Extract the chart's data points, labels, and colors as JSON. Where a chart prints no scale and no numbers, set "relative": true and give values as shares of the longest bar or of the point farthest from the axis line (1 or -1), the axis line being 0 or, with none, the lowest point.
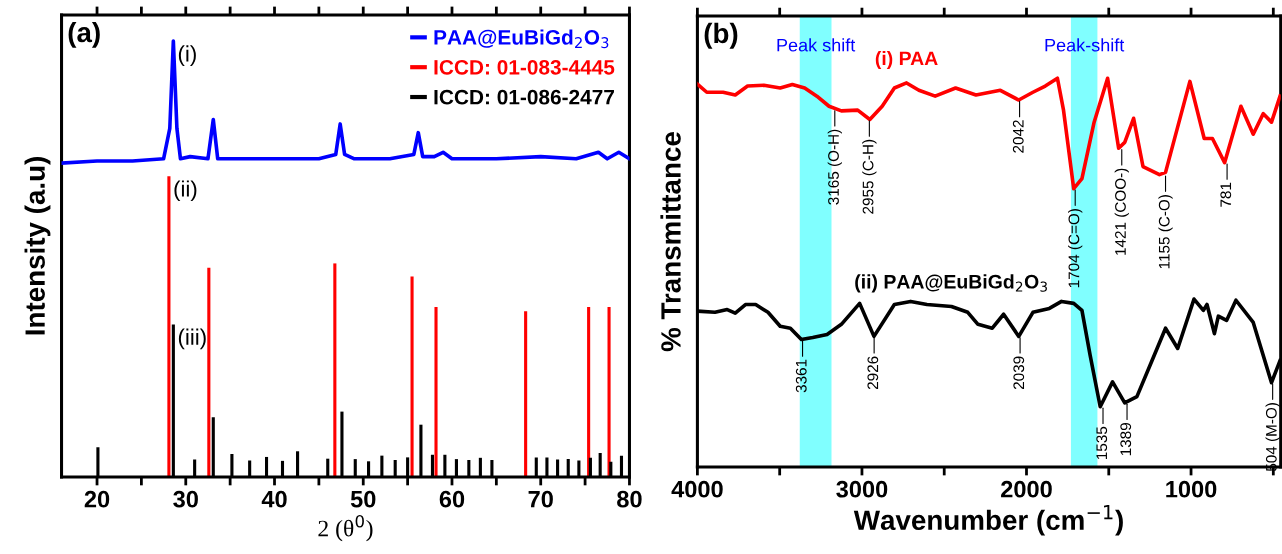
{
  "chart_data": [
    {
      "type": "line",
      "relative": true,
      "xlabel": "2 (θ$^{0}$)",
      "ylabel": "Intensity (a.u)",
      "xlim": [
        16,
        80
      ],
      "xticks": [
        20,
        {
          "value": 25,
          "label": null
        },
        30,
        {
          "value": 35,
          "label": null
        },
        40,
        {
          "value": 45,
          "label": null
        },
        50,
        {
          "value": 55,
          "label": null
        },
        60,
        {
          "value": 65,
          "label": null
        },
        70,
        {
          "value": 75,
          "label": null
        },
        80
      ],
      "legend": "top right",
      "grid": false,
      "annotations": [
        "(a)",
        {
          "text": "(i)",
          "x": 28.6,
          "y": 1.0
        },
        {
          "text": "(ii)",
          "x": 28.1,
          "y": 0.69
        },
        {
          "text": "(iii)",
          "x": 28.6,
          "y": 0.35
        }
      ],
      "series": [
        {
          "name": "PAA@EuBiGd$_{2}$O$_{3}$",
          "color": "#0000ff",
          "x": [
            16,
            20,
            24,
            27.5,
            28.2,
            28.6,
            29.0,
            29.4,
            30.5,
            32.5,
            33.1,
            33.6,
            35,
            40,
            45,
            46.9,
            47.4,
            47.9,
            49,
            53,
            55.7,
            56.2,
            56.7,
            58,
            59,
            60,
            65,
            70,
            74,
            76.5,
            77.5,
            78.8,
            80
          ],
          "values": [
            0.72,
            0.725,
            0.725,
            0.73,
            0.8,
            1.0,
            0.8,
            0.73,
            0.735,
            0.73,
            0.82,
            0.73,
            0.73,
            0.73,
            0.73,
            0.74,
            0.81,
            0.74,
            0.73,
            0.73,
            0.74,
            0.79,
            0.735,
            0.735,
            0.745,
            0.73,
            0.73,
            0.735,
            0.73,
            0.745,
            0.73,
            0.745,
            0.73
          ]
        },
        {
          "name": "ICCD: 01-083-4445",
          "type": "bar",
          "color": "#ff0000",
          "x": [
            28.1,
            32.6,
            46.8,
            55.5,
            58.2,
            68.3,
            75.4,
            77.7
          ],
          "values": [
            0.69,
            0.48,
            0.49,
            0.46,
            0.39,
            0.38,
            0.39,
            0.39
          ]
        },
        {
          "name": "ICCD: 01-086-2477",
          "type": "bar",
          "color": "#000000",
          "x": [
            20.1,
            28.6,
            31.0,
            33.1,
            35.2,
            37.2,
            39.1,
            40.9,
            42.6,
            46.0,
            47.6,
            49.1,
            50.6,
            52.1,
            53.6,
            55.0,
            56.5,
            57.8,
            59.2,
            60.5,
            61.9,
            63.2,
            64.5,
            69.5,
            70.7,
            71.9,
            73.1,
            74.3,
            75.6,
            76.7,
            77.9,
            79.1
          ],
          "values": [
            0.068,
            0.35,
            0.04,
            0.137,
            0.053,
            0.038,
            0.046,
            0.037,
            0.059,
            0.042,
            0.15,
            0.041,
            0.036,
            0.049,
            0.039,
            0.045,
            0.12,
            0.051,
            0.051,
            0.041,
            0.039,
            0.044,
            0.039,
            0.045,
            0.045,
            0.04,
            0.041,
            0.038,
            0.044,
            0.055,
            0.035,
            0.049
          ]
        }
      ]
    },
    {
      "type": "line",
      "relative": true,
      "xlabel": "Wavenumber (cm$^{−1}$)",
      "ylabel": "% Transmittance",
      "xlim": [
        4000,
        455
      ],
      "xticks": [
        4000,
        {
          "value": 3500,
          "label": null
        },
        3000,
        {
          "value": 2500,
          "label": null
        },
        2000,
        {
          "value": 1500,
          "label": null
        },
        1000,
        {
          "value": 500,
          "label": null
        }
      ],
      "legend": false,
      "grid": false,
      "bands": [
        {
          "axis": "x",
          "from": 3378,
          "to": 3185,
          "label": "Peak shift",
          "color": "#80ffff"
        },
        {
          "axis": "x",
          "from": 1730,
          "to": 1569,
          "label": "Peak-shift",
          "color": "#80ffff"
        }
      ],
      "annotations": [
        "(b)",
        {
          "text": "3165 (O-H)",
          "x": 3165,
          "y": 0.92
        },
        {
          "text": "2955 (C-H)",
          "x": 2955,
          "y": 0.894
        },
        {
          "text": "2042",
          "x": 2042,
          "y": 0.944
        },
        {
          "text": "1704 (C=O)",
          "x": 1704,
          "y": 0.716
        },
        {
          "text": "1421 (COO-)",
          "x": 1421,
          "y": 0.82
        },
        {
          "text": "1155 (C-O)",
          "x": 1155,
          "y": 0.752
        },
        {
          "text": "781",
          "x": 781,
          "y": 0.783
        },
        {
          "text": "3361",
          "x": 3361,
          "y": 0.328
        },
        {
          "text": "2926",
          "x": 2926,
          "y": 0.336
        },
        {
          "text": "2039",
          "x": 2039,
          "y": 0.336
        },
        {
          "text": "1535",
          "x": 1535,
          "y": 0.155
        },
        {
          "text": "1389",
          "x": 1389,
          "y": 0.165
        },
        {
          "text": "504 (M-O)",
          "x": 504,
          "y": 0.217
        }
      ],
      "series": [
        {
          "name": "(i) PAA",
          "color": "#ff0000",
          "x": [
            4000,
            3943,
            3844,
            3770,
            3695,
            3596,
            3497,
            3423,
            3348,
            3274,
            3200,
            3125,
            3026,
            2952,
            2877,
            2803,
            2729,
            2654,
            2555,
            2431,
            2307,
            2159,
            2047,
            1961,
            1886,
            1812,
            1775,
            1713,
            1663,
            1589,
            1507,
            1440,
            1403,
            1349,
            1292,
            1192,
            1155,
            1007,
            920,
            870,
            796,
            697,
            622,
            561,
            511,
            459
          ],
          "values": [
            0.985,
            0.964,
            0.964,
            0.957,
            0.98,
            0.982,
            0.975,
            0.984,
            0.975,
            0.954,
            0.928,
            0.916,
            0.918,
            0.894,
            0.928,
            0.975,
            0.988,
            0.969,
            0.954,
            0.975,
            0.957,
            0.969,
            0.944,
            0.964,
            0.98,
            1.0,
            0.918,
            0.716,
            0.742,
            0.887,
            1.0,
            0.82,
            0.835,
            0.897,
            0.773,
            0.752,
            0.758,
            0.992,
            0.845,
            0.845,
            0.783,
            0.928,
            0.856,
            0.909,
            0.887,
            0.954
          ]
        },
        {
          "name": "(ii) PAA@EuBiGd$_{2}$O$_{3}$",
          "color": "#000000",
          "x": [
            4000,
            3893,
            3819,
            3770,
            3708,
            3646,
            3571,
            3497,
            3435,
            3368,
            3299,
            3212,
            3125,
            3014,
            2927,
            2803,
            2704,
            2605,
            2456,
            2357,
            2295,
            2208,
            2139,
            2047,
            1961,
            1861,
            1787,
            1713,
            1663,
            1614,
            1552,
            1477,
            1403,
            1329,
            1242,
            1155,
            1081,
            982,
            925,
            903,
            858,
            834,
            784,
            727,
            622,
            511,
            459
          ],
          "values": [
            0.401,
            0.398,
            0.405,
            0.396,
            0.418,
            0.418,
            0.398,
            0.362,
            0.357,
            0.328,
            0.333,
            0.341,
            0.367,
            0.421,
            0.336,
            0.418,
            0.426,
            0.418,
            0.413,
            0.398,
            0.367,
            0.357,
            0.393,
            0.336,
            0.398,
            0.408,
            0.426,
            0.421,
            0.403,
            0.289,
            0.155,
            0.219,
            0.165,
            0.181,
            0.269,
            0.357,
            0.305,
            0.432,
            0.403,
            0.418,
            0.343,
            0.388,
            0.377,
            0.429,
            0.372,
            0.217,
            0.274
          ]
        }
      ]
    }
  ]
}
